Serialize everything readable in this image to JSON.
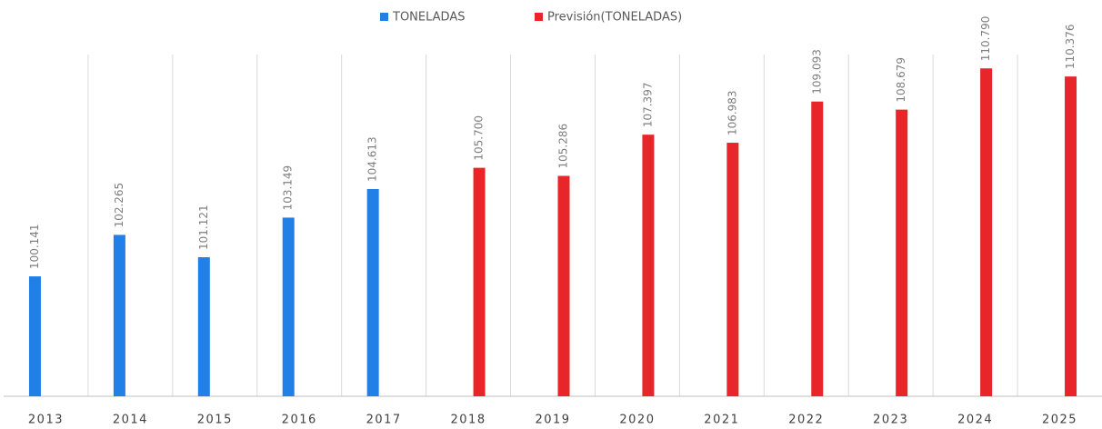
{
  "chart_data": {
    "type": "bar",
    "categories": [
      "2013",
      "2014",
      "2015",
      "2016",
      "2017",
      "2018",
      "2019",
      "2020",
      "2021",
      "2022",
      "2023",
      "2024",
      "2025"
    ],
    "series": [
      {
        "name": "TONELADAS",
        "color": "#2080e8",
        "values": [
          100.141,
          102.265,
          101.121,
          103.149,
          104.613,
          null,
          null,
          null,
          null,
          null,
          null,
          null,
          null
        ],
        "value_labels": [
          "100.141",
          "102.265",
          "101.121",
          "103.149",
          "104.613",
          null,
          null,
          null,
          null,
          null,
          null,
          null,
          null
        ]
      },
      {
        "name": "Previsión(TONELADAS)",
        "color": "#e8262a",
        "values": [
          null,
          null,
          null,
          null,
          null,
          105.7,
          105.286,
          107.397,
          106.983,
          109.093,
          108.679,
          110.79,
          110.376
        ],
        "value_labels": [
          null,
          null,
          null,
          null,
          null,
          "105.700",
          "105.286",
          "107.397",
          "106.983",
          "109.093",
          "108.679",
          "110.790",
          "110.376"
        ]
      }
    ],
    "ylim": [
      94,
      111.5
    ],
    "grid": true,
    "legend": "top"
  }
}
